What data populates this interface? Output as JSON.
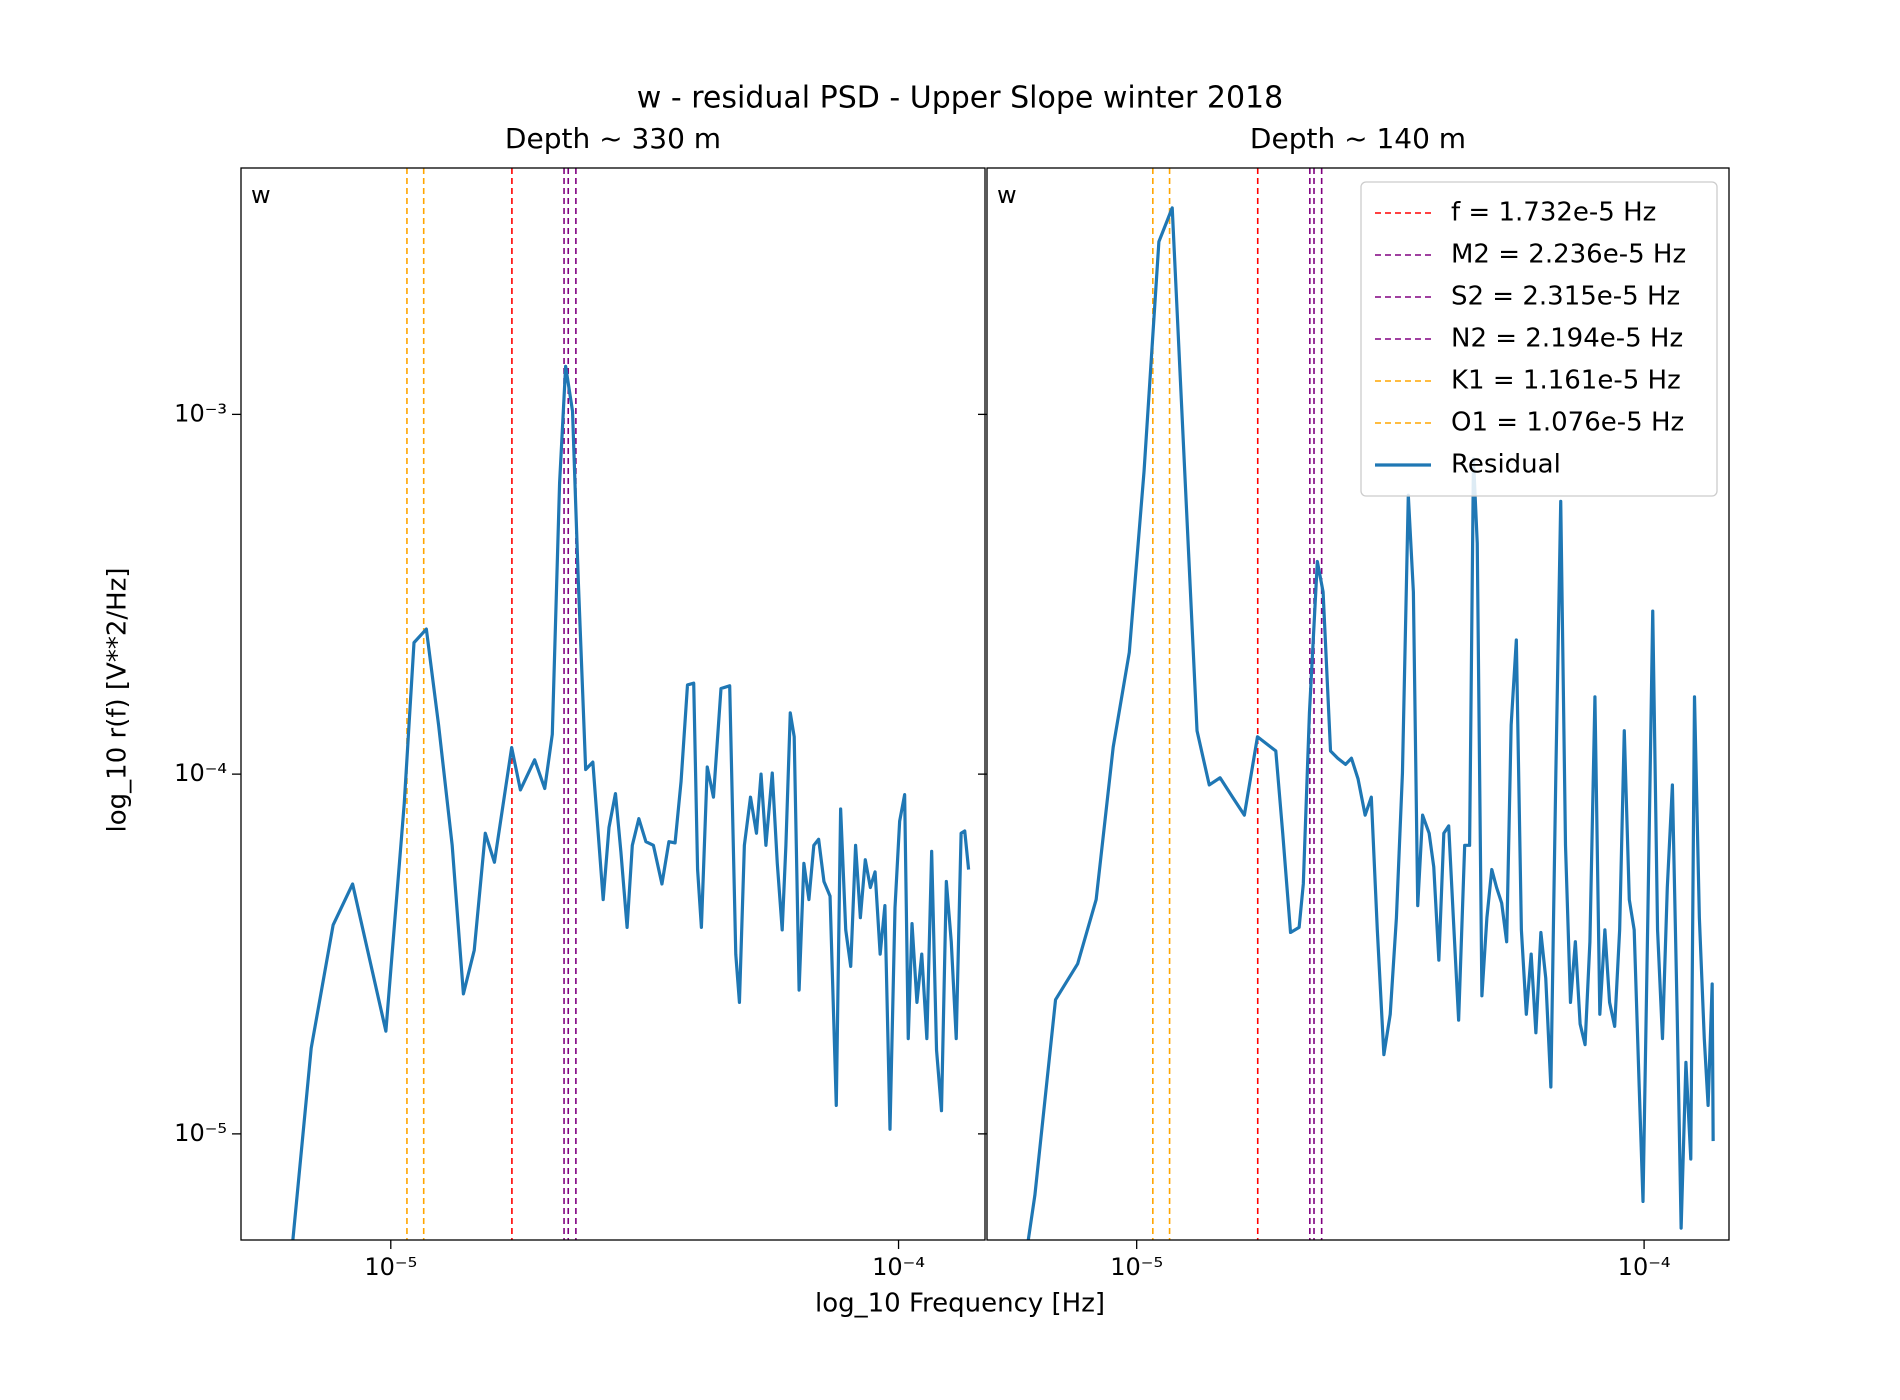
{
  "title": "w - residual PSD - Upper Slope winter 2018",
  "xlabel": "log_10 Frequency [Hz]",
  "ylabel": "log_10 r(f) [V**2/Hz]",
  "reference_lines": [
    {
      "name": "f = 1.732e-5 Hz",
      "x": 1.732e-05,
      "color": "#ff0000"
    },
    {
      "name": "M2 = 2.236e-5 Hz",
      "x": 2.236e-05,
      "color": "#800080"
    },
    {
      "name": "S2 = 2.315e-5 Hz",
      "x": 2.315e-05,
      "color": "#800080"
    },
    {
      "name": "N2 = 2.194e-5 Hz",
      "x": 2.194e-05,
      "color": "#800080"
    },
    {
      "name": "K1 = 1.161e-5 Hz",
      "x": 1.161e-05,
      "color": "#ffa500"
    },
    {
      "name": "O1 = 1.076e-5 Hz",
      "x": 1.076e-05,
      "color": "#ffa500"
    }
  ],
  "chart_data": [
    {
      "type": "line",
      "title": "Depth ~ 330 m",
      "annotation": "w",
      "xscale": "log",
      "yscale": "log",
      "xlim": [
        5.07e-06,
        0.000148
      ],
      "ylim": [
        5.07e-06,
        0.00484
      ],
      "xticks": [
        {
          "value": 1e-05,
          "label": "10⁻⁵"
        },
        {
          "value": 0.0001,
          "label": "10⁻⁴"
        }
      ],
      "yticks": [
        {
          "value": 1e-05,
          "label": "10⁻⁵"
        },
        {
          "value": 0.0001,
          "label": "10⁻⁴"
        },
        {
          "value": 0.001,
          "label": "10⁻³"
        }
      ],
      "x": [
        6.37e-06,
        6.97e-06,
        7.7e-06,
        8.41e-06,
        9.78e-06,
        1.063e-05,
        1.111e-05,
        1.175e-05,
        1.242e-05,
        1.321e-05,
        1.39e-05,
        1.46e-05,
        1.535e-05,
        1.6e-05,
        1.73e-05,
        1.8e-05,
        1.92e-05,
        2.01e-05,
        2.08e-05,
        2.15e-05,
        2.21e-05,
        2.28e-05,
        2.34e-05,
        2.42e-05,
        2.5e-05,
        2.62e-05,
        2.69e-05,
        2.77e-05,
        2.84e-05,
        2.92e-05,
        2.99e-05,
        3.08e-05,
        3.18e-05,
        3.29e-05,
        3.42e-05,
        3.53e-05,
        3.63e-05,
        3.73e-05,
        3.84e-05,
        3.95e-05,
        4.02e-05,
        4.09e-05,
        4.2e-05,
        4.32e-05,
        4.47e-05,
        4.65e-05,
        4.78e-05,
        4.86e-05,
        4.97e-05,
        5.11e-05,
        5.25e-05,
        5.36e-05,
        5.48e-05,
        5.64e-05,
        5.77e-05,
        5.9e-05,
        6e-05,
        6.12e-05,
        6.23e-05,
        6.37e-05,
        6.51e-05,
        6.66e-05,
        6.81e-05,
        6.96e-05,
        7.13e-05,
        7.33e-05,
        7.54e-05,
        7.69e-05,
        7.87e-05,
        8.05e-05,
        8.23e-05,
        8.41e-05,
        8.6e-05,
        8.8e-05,
        8.99e-05,
        9.2e-05,
        9.4e-05,
        9.62e-05,
        9.84e-05,
        0.0001005,
        0.0001028,
        0.0001045,
        0.0001063,
        0.0001087,
        0.0001111,
        0.0001137,
        0.0001162,
        0.0001188,
        0.0001215,
        0.0001242,
        0.000127,
        0.0001299,
        0.0001328,
        0.000135,
        0.0001374
      ],
      "series": [
        {
          "color": "#1f77b4",
          "values": [
            4.58e-06,
            1.73e-05,
            3.81e-05,
            4.95e-05,
            1.93e-05,
            8.3e-05,
            0.000232,
            0.000253,
            0.000137,
            6.34e-05,
            2.45e-05,
            3.24e-05,
            6.85e-05,
            5.69e-05,
            0.0001185,
            9.04e-05,
            0.0001096,
            9.12e-05,
            0.000129,
            0.000644,
            0.00136,
            0.00102,
            0.000347,
            0.000103,
            0.000108,
            4.48e-05,
            7.11e-05,
            8.83e-05,
            6.05e-05,
            3.75e-05,
            6.34e-05,
            7.52e-05,
            6.49e-05,
            6.34e-05,
            4.95e-05,
            6.49e-05,
            6.44e-05,
            9.55e-05,
            0.000177,
            0.000179,
            5.43e-05,
            3.75e-05,
            0.0001047,
            8.63e-05,
            0.000173,
            0.000176,
            3.16e-05,
            2.32e-05,
            6.34e-05,
            8.63e-05,
            6.85e-05,
            0.0001,
            6.34e-05,
            0.0001007,
            5.65e-05,
            3.69e-05,
            6.34e-05,
            0.000148,
            0.000127,
            2.51e-05,
            5.65e-05,
            4.48e-05,
            6.34e-05,
            6.59e-05,
            5.03e-05,
            4.58e-05,
            1.2e-05,
            8e-05,
            3.69e-05,
            2.92e-05,
            6.34e-05,
            3.99e-05,
            5.78e-05,
            4.84e-05,
            5.35e-05,
            3.16e-05,
            4.31e-05,
            1.03e-05,
            4.25e-05,
            7.4e-05,
            8.77e-05,
            1.84e-05,
            3.84e-05,
            2.32e-05,
            3.16e-05,
            1.84e-05,
            6.1e-05,
            1.71e-05,
            1.16e-05,
            5.03e-05,
            3.42e-05,
            1.84e-05,
            6.85e-05,
            6.95e-05,
            5.43e-05
          ]
        }
      ]
    },
    {
      "type": "line",
      "title": "Depth ~ 140 m",
      "annotation": "w",
      "xscale": "log",
      "yscale": "log",
      "sharey": true,
      "legend": "upper right",
      "xlim": [
        5.07e-06,
        0.000147
      ],
      "xticks": [
        {
          "value": 1e-05,
          "label": "10⁻⁵"
        },
        {
          "value": 0.0001,
          "label": "10⁻⁴"
        }
      ],
      "x": [
        6.05e-06,
        6.3e-06,
        6.92e-06,
        7.65e-06,
        8.32e-06,
        8.99e-06,
        9.67e-06,
        1.034e-05,
        1.106e-05,
        1.175e-05,
        1.315e-05,
        1.39e-05,
        1.46e-05,
        1.545e-05,
        1.63e-05,
        1.73e-05,
        1.88e-05,
        1.94e-05,
        2.01e-05,
        2.09e-05,
        2.13e-05,
        2.19e-05,
        2.27e-05,
        2.33e-05,
        2.41e-05,
        2.49e-05,
        2.58e-05,
        2.65e-05,
        2.73e-05,
        2.82e-05,
        2.9e-05,
        2.98e-05,
        3.07e-05,
        3.16e-05,
        3.25e-05,
        3.34e-05,
        3.43e-05,
        3.51e-05,
        3.58e-05,
        3.66e-05,
        3.77e-05,
        3.85e-05,
        3.94e-05,
        4.03e-05,
        4.12e-05,
        4.21e-05,
        4.31e-05,
        4.43e-05,
        4.53e-05,
        4.61e-05,
        4.69e-05,
        4.79e-05,
        4.9e-05,
        5.01e-05,
        5.12e-05,
        5.24e-05,
        5.36e-05,
        5.47e-05,
        5.6e-05,
        5.73e-05,
        5.86e-05,
        5.99e-05,
        6.12e-05,
        6.26e-05,
        6.4e-05,
        6.55e-05,
        6.7e-05,
        6.85e-05,
        7e-05,
        7.16e-05,
        7.32e-05,
        7.48e-05,
        7.65e-05,
        7.82e-05,
        8e-05,
        8.18e-05,
        8.37e-05,
        8.55e-05,
        8.75e-05,
        8.95e-05,
        9.14e-05,
        9.35e-05,
        9.56e-05,
        9.78e-05,
        9.95e-05,
        0.0001017,
        0.000104,
        0.0001063,
        0.0001087,
        0.0001111,
        0.0001137,
        0.0001162,
        0.0001183,
        0.0001209,
        0.0001236,
        0.0001257,
        0.0001285,
        0.0001314,
        0.0001337,
        0.0001362,
        0.0001368
      ],
      "series": [
        {
          "name": "Residual",
          "color": "#1f77b4",
          "values": [
            4.58e-06,
            6.75e-06,
            2.36e-05,
            2.97e-05,
            4.48e-05,
            0.000119,
            0.000218,
            0.000695,
            0.00302,
            0.00375,
            0.000132,
            9.33e-05,
            9.77e-05,
            8.63e-05,
            7.69e-05,
            0.000127,
            0.000116,
            6.85e-05,
            3.63e-05,
            3.75e-05,
            4.95e-05,
            0.000148,
            0.00039,
            0.000321,
            0.000116,
            0.0001107,
            0.0001064,
            0.0001107,
            9.71e-05,
            7.69e-05,
            8.63e-05,
            3.69e-05,
            1.66e-05,
            2.15e-05,
            3.99e-05,
            0.0001007,
            0.000596,
            0.000321,
            4.31e-05,
            7.69e-05,
            6.85e-05,
            5.52e-05,
            3.04e-05,
            6.85e-05,
            7.18e-05,
            3.93e-05,
            2.07e-05,
            6.34e-05,
            6.34e-05,
            0.000752,
            0.000438,
            2.42e-05,
            3.99e-05,
            5.43e-05,
            4.84e-05,
            4.38e-05,
            3.42e-05,
            0.000137,
            0.000236,
            3.69e-05,
            2.15e-05,
            3.16e-05,
            1.91e-05,
            3.63e-05,
            2.71e-05,
            1.35e-05,
            0.0001007,
            0.000573,
            6.34e-05,
            2.32e-05,
            3.42e-05,
            2.02e-05,
            1.77e-05,
            3.42e-05,
            0.000164,
            2.15e-05,
            3.69e-05,
            2.32e-05,
            1.99e-05,
            3.69e-05,
            0.000132,
            4.48e-05,
            3.69e-05,
            1.35e-05,
            6.49e-06,
            3.99e-05,
            0.000284,
            3.69e-05,
            1.84e-05,
            4.84e-05,
            9.33e-05,
            2.15e-05,
            5.47e-06,
            1.58e-05,
            8.51e-06,
            0.000164,
            3.99e-05,
            1.84e-05,
            1.2e-05,
            2.61e-05,
            9.55e-06
          ]
        }
      ]
    }
  ]
}
